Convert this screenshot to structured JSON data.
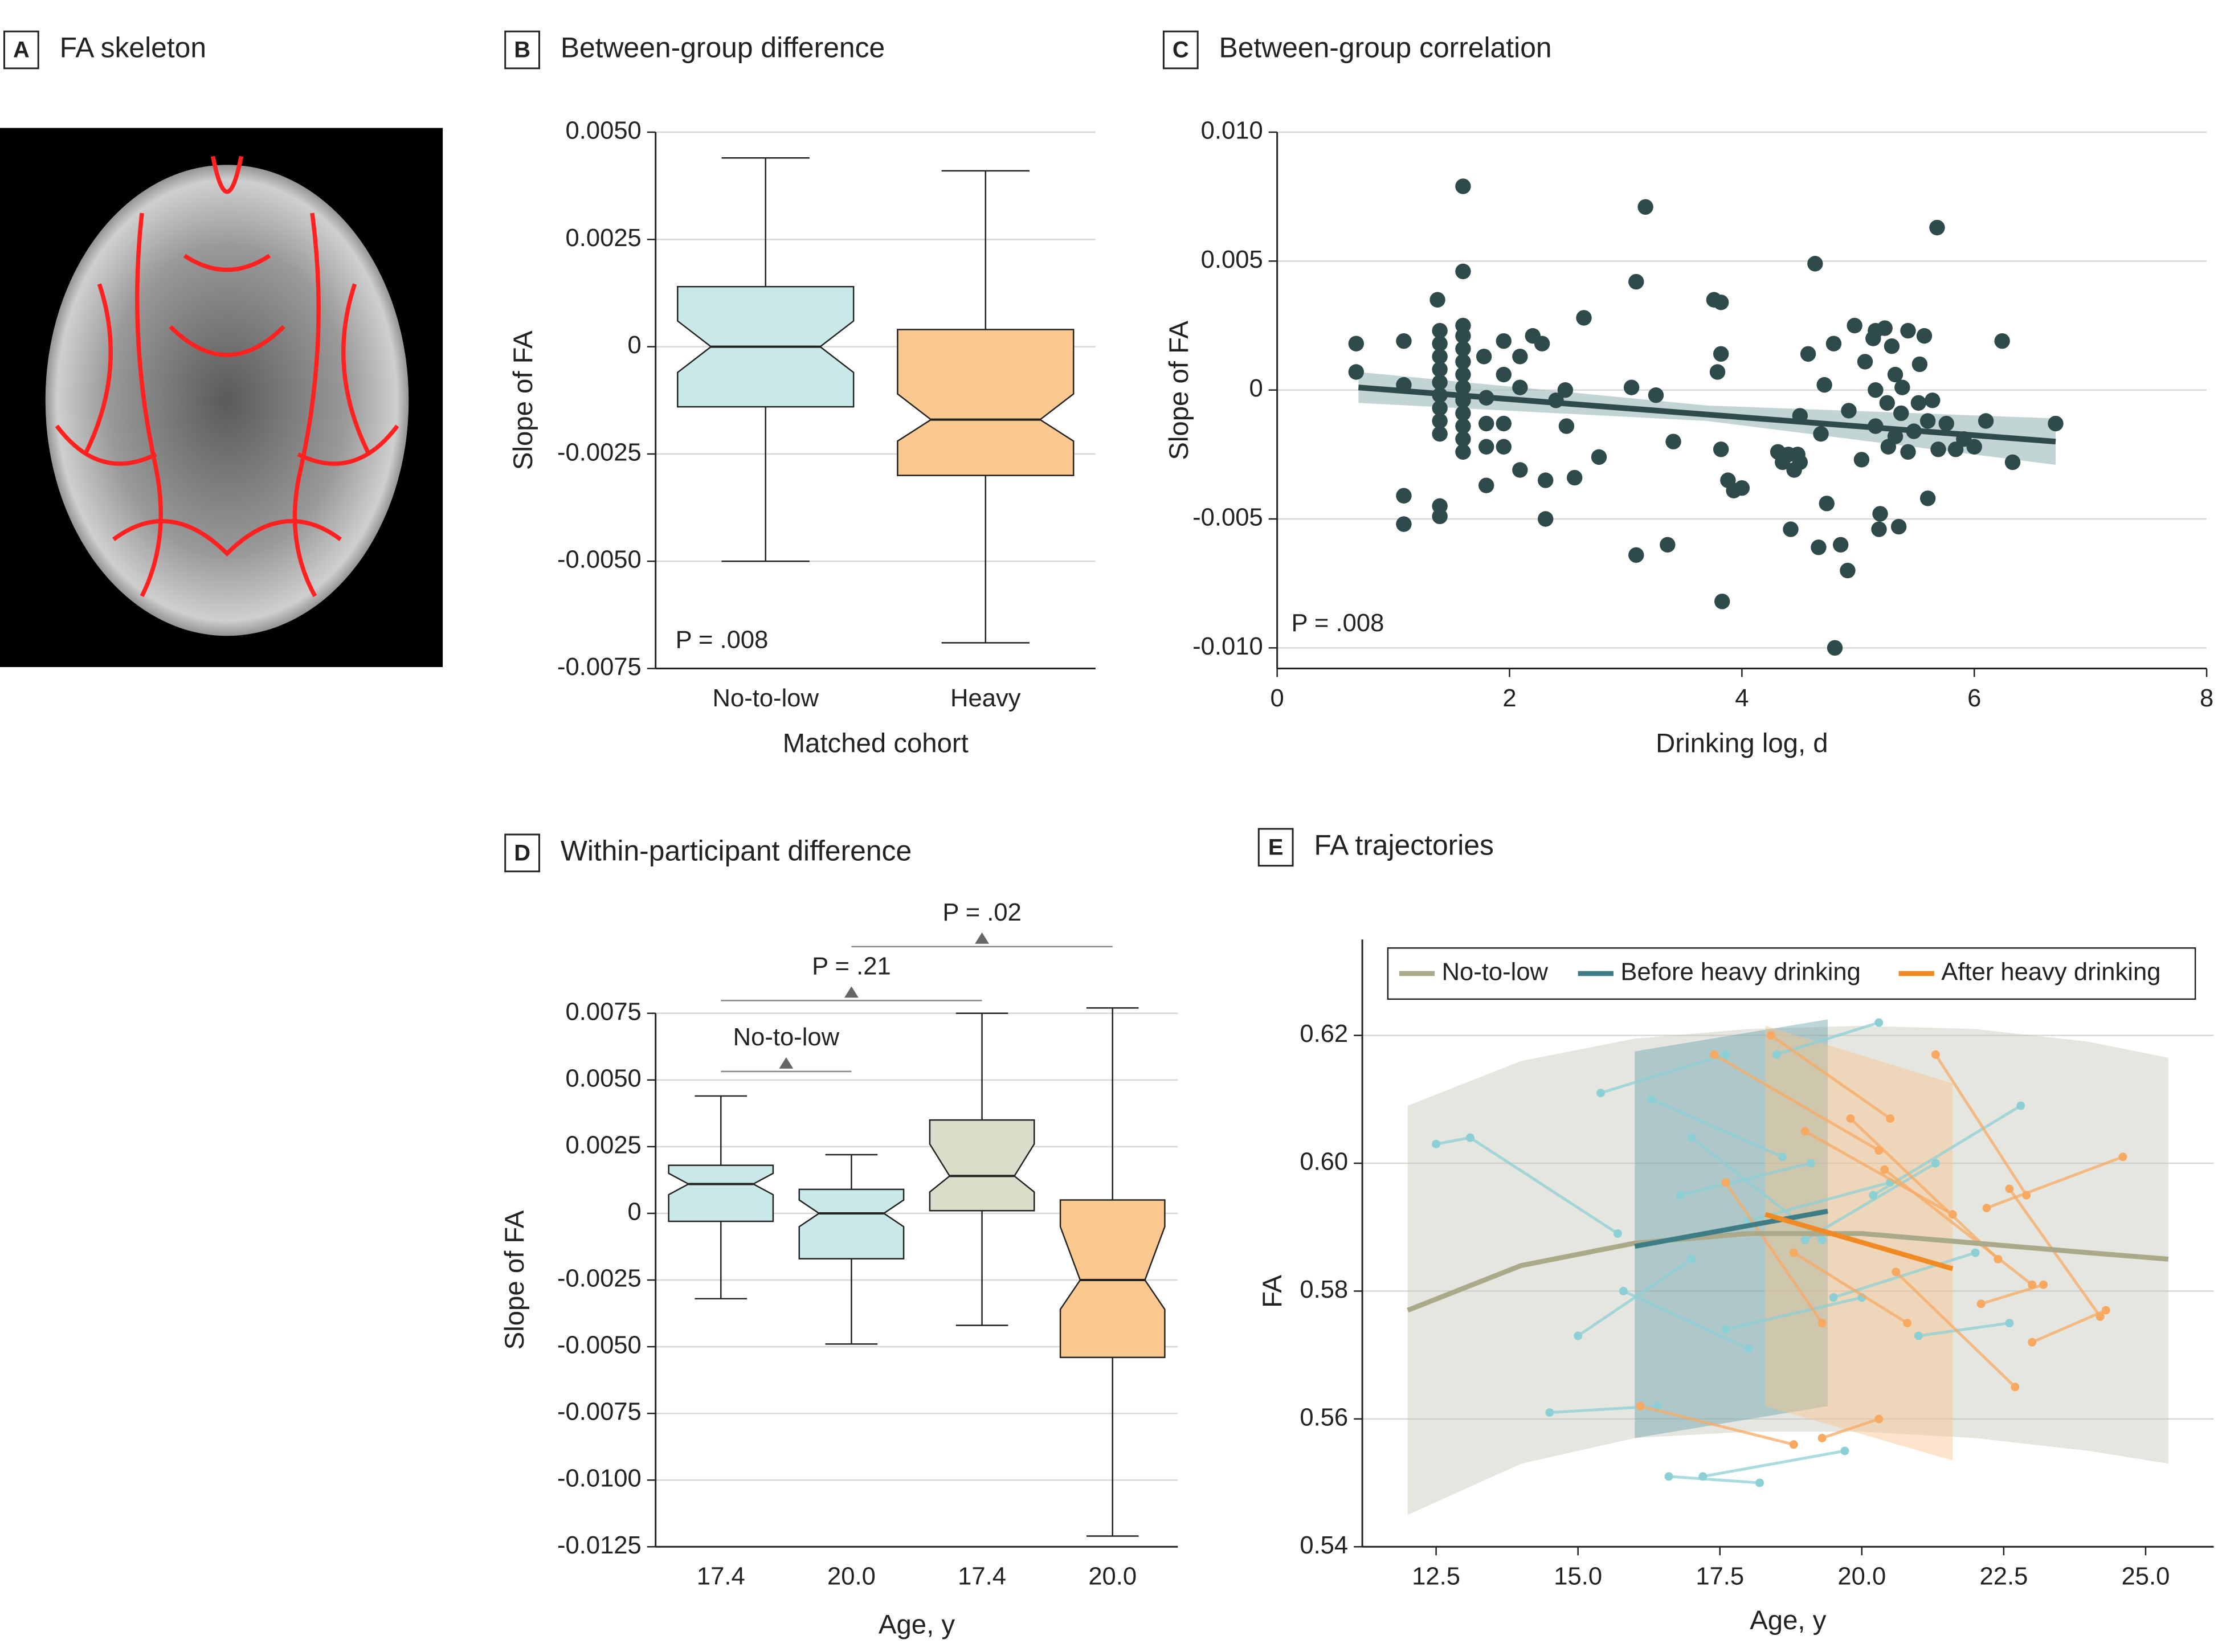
{
  "chart_data": [
    {
      "type": "image",
      "label": "A",
      "title": "FA skeleton"
    },
    {
      "type": "box",
      "label": "B",
      "title": "Between-group difference",
      "ylabel": "Slope of FA",
      "xlabel": "Matched cohort",
      "categories": [
        "No-to-low",
        "Heavy"
      ],
      "colors": [
        "#c9e8ea",
        "#fbc98f"
      ],
      "boxes": [
        {
          "whisker_low": -0.005,
          "q1": -0.0014,
          "notch_low": -0.0006,
          "median": 0,
          "notch_high": 0.0006,
          "q3": 0.0014,
          "whisker_high": 0.0044
        },
        {
          "whisker_low": -0.0069,
          "q1": -0.003,
          "notch_low": -0.0022,
          "median": -0.0017,
          "notch_high": -0.0011,
          "q3": 0.0004,
          "whisker_high": 0.0041
        }
      ],
      "ylim": [
        -0.0075,
        0.005
      ],
      "yticks": [
        {
          "value": 0.005,
          "label": "0.0050"
        },
        0.0025,
        0,
        -0.0025,
        {
          "value": -0.005,
          "label": "-0.0050"
        },
        -0.0075
      ],
      "grid": true,
      "annotation": "P = .008"
    },
    {
      "type": "scatter",
      "label": "C",
      "title": "Between-group correlation",
      "ylabel": "Slope of FA",
      "xlabel": "Drinking log, d",
      "color": "#2e4a4a",
      "x": [
        0.68,
        0.68,
        1.09,
        1.09,
        1.09,
        1.09,
        1.38,
        1.4,
        1.4,
        1.4,
        1.4,
        1.4,
        1.4,
        1.4,
        1.4,
        1.4,
        1.4,
        1.4,
        1.6,
        1.6,
        1.6,
        1.6,
        1.6,
        1.6,
        1.6,
        1.6,
        1.6,
        1.6,
        1.6,
        1.6,
        1.6,
        1.78,
        1.8,
        1.8,
        1.8,
        1.8,
        1.95,
        1.95,
        1.95,
        1.95,
        2.09,
        2.09,
        2.09,
        2.2,
        2.28,
        2.31,
        2.31,
        2.4,
        2.48,
        2.49,
        2.56,
        2.64,
        2.77,
        3.05,
        3.09,
        3.09,
        3.17,
        3.26,
        3.36,
        3.41,
        3.76,
        3.82,
        3.82,
        3.79,
        3.82,
        3.83,
        3.88,
        3.93,
        4.0,
        4.31,
        4.35,
        4.4,
        4.42,
        4.45,
        4.48,
        4.5,
        4.5,
        4.57,
        4.63,
        4.66,
        4.68,
        4.73,
        4.71,
        4.79,
        4.8,
        4.85,
        4.91,
        4.92,
        4.97,
        5.03,
        5.06,
        5.13,
        5.15,
        5.15,
        5.15,
        5.18,
        5.19,
        5.23,
        5.25,
        5.26,
        5.29,
        5.32,
        5.32,
        5.35,
        5.37,
        5.38,
        5.43,
        5.43,
        5.48,
        5.52,
        5.53,
        5.57,
        5.6,
        5.6,
        5.64,
        5.68,
        5.69,
        5.76,
        5.84,
        5.91,
        6.0,
        6.1,
        6.24,
        6.33,
        6.7
      ],
      "y": [
        0.0018,
        0.0007,
        0.0019,
        0.0002,
        -0.0041,
        -0.0052,
        0.0035,
        0.0023,
        0.0018,
        0.0013,
        0.0008,
        0.0003,
        -0.0002,
        -0.0007,
        -0.0012,
        -0.0017,
        -0.0045,
        -0.0049,
        0.0079,
        0.0046,
        0.0025,
        0.0021,
        0.0016,
        0.0011,
        0.0006,
        0.0001,
        -0.0004,
        -0.0009,
        -0.0014,
        -0.0019,
        -0.0024,
        0.0013,
        -0.0003,
        -0.0013,
        -0.0022,
        -0.0037,
        0.0006,
        -0.0013,
        -0.0022,
        0.0019,
        0.0013,
        0.0001,
        -0.0031,
        0.0021,
        0.0018,
        -0.0035,
        -0.005,
        -0.0004,
        0,
        -0.0014,
        -0.0034,
        0.0028,
        -0.0026,
        0.0001,
        0.0042,
        -0.0064,
        0.0071,
        -0.0002,
        -0.006,
        -0.002,
        0.0035,
        0.0034,
        0.0014,
        0.0007,
        -0.0023,
        -0.0082,
        -0.0035,
        -0.0039,
        -0.0038,
        -0.0024,
        -0.0028,
        -0.0025,
        -0.0054,
        -0.0031,
        -0.0025,
        -0.001,
        -0.0028,
        0.0014,
        0.0049,
        -0.0061,
        -0.0017,
        -0.0044,
        0.0002,
        0.0018,
        -0.01,
        -0.006,
        -0.007,
        -0.0008,
        0.0025,
        -0.0027,
        0.0011,
        0.002,
        0,
        -0.0014,
        0.0023,
        -0.0054,
        -0.0048,
        0.0024,
        -0.0005,
        -0.0022,
        0.0017,
        0.0006,
        -0.0018,
        -0.0053,
        -0.0009,
        0.0001,
        0.0023,
        -0.0024,
        -0.0016,
        -0.0005,
        0.001,
        0.0021,
        -0.0042,
        -0.0012,
        -0.0004,
        0.0063,
        -0.0023,
        -0.0013,
        -0.0023,
        -0.0019,
        -0.0022,
        -0.0012,
        0.0019,
        -0.0028,
        -0.0013
      ],
      "fit": {
        "x": [
          0.7,
          6.7
        ],
        "y": [
          0.0001,
          -0.002
        ],
        "color": "#2e4a4a"
      },
      "band": {
        "x": [
          0.7,
          3.7,
          6.7
        ],
        "lower": [
          -0.0005,
          -0.0012,
          -0.0029
        ],
        "upper": [
          0.0007,
          -0.0006,
          -0.0011
        ],
        "color": "#a8c2c0"
      },
      "xlim": [
        0,
        8
      ],
      "xticks": [
        0,
        2,
        4,
        6,
        8
      ],
      "ylim": [
        -0.0108,
        0.01
      ],
      "yticks": [
        {
          "value": 0.01,
          "label": "0.010"
        },
        0.005,
        0,
        -0.005,
        {
          "value": -0.01,
          "label": "-0.010"
        }
      ],
      "grid": true,
      "annotation": "P = .008"
    },
    {
      "type": "box",
      "label": "D",
      "title": "Within-participant difference",
      "ylabel": "Slope of FA",
      "xlabel": "Age, y",
      "categories": [
        "17.4",
        "20.0",
        "17.4",
        "20.0"
      ],
      "colors": [
        "#c9e8ea",
        "#c9e8ea",
        "#dcdccb",
        "#fbc98f"
      ],
      "boxes": [
        {
          "whisker_low": -0.0032,
          "q1": -0.0003,
          "notch_low": 0.0007,
          "median": 0.0011,
          "notch_high": 0.0015,
          "q3": 0.0018,
          "whisker_high": 0.0044
        },
        {
          "whisker_low": -0.0049,
          "q1": -0.0017,
          "notch_low": -0.0005,
          "median": 0,
          "notch_high": 0.0005,
          "q3": 0.0009,
          "whisker_high": 0.0022
        },
        {
          "whisker_low": -0.0042,
          "q1": 0.0001,
          "notch_low": 0.0008,
          "median": 0.0014,
          "notch_high": 0.0026,
          "q3": 0.0035,
          "whisker_high": 0.0075
        },
        {
          "whisker_low": -0.0121,
          "q1": -0.0054,
          "notch_low": -0.0036,
          "median": -0.0025,
          "notch_high": -0.0005,
          "q3": 0.0005,
          "whisker_high": 0.0077
        }
      ],
      "ylim": [
        -0.0125,
        0.0075
      ],
      "yticks": [
        0.0075,
        {
          "value": 0.005,
          "label": "0.0050"
        },
        0.0025,
        0,
        -0.0025,
        {
          "value": -0.005,
          "label": "-0.0050"
        },
        -0.0075,
        {
          "value": -0.01,
          "label": "-0.0100"
        },
        -0.0125
      ],
      "grid": true,
      "annotations": [
        "No-to-low",
        "P = .21",
        "P = .02"
      ]
    },
    {
      "type": "line",
      "label": "E",
      "title": "FA trajectories",
      "ylabel": "FA",
      "xlabel": "Age, y",
      "series": [
        {
          "name": "No-to-low",
          "color": "#aaa98a",
          "band_color": "#c8c8bc",
          "x": [
            12,
            14,
            16,
            18,
            20,
            22,
            24,
            25.4
          ],
          "y": [
            0.577,
            0.584,
            0.5875,
            0.589,
            0.589,
            0.5875,
            0.586,
            0.585
          ],
          "lower": [
            0.545,
            0.553,
            0.557,
            0.558,
            0.558,
            0.557,
            0.555,
            0.553
          ],
          "upper": [
            0.609,
            0.616,
            0.6195,
            0.621,
            0.6215,
            0.621,
            0.619,
            0.6165
          ]
        },
        {
          "name": "Before heavy drinking",
          "color": "#3f7d86",
          "band_color": "#6aa3ad",
          "x": [
            16,
            19.4
          ],
          "y": [
            0.587,
            0.5925
          ],
          "lower": [
            0.557,
            0.562
          ],
          "upper": [
            0.6175,
            0.6225
          ]
        },
        {
          "name": "After heavy drinking",
          "color": "#f08a24",
          "band_color": "#f9c48f",
          "x": [
            18.3,
            21.6
          ],
          "y": [
            0.592,
            0.5835
          ],
          "lower": [
            0.562,
            0.5535
          ],
          "upper": [
            0.6215,
            0.6125
          ]
        }
      ],
      "trajectories": [
        {
          "color": "#8ccfd4",
          "x": [
            12.5,
            13.1
          ],
          "y": [
            0.603,
            0.604
          ]
        },
        {
          "color": "#8ccfd4",
          "x": [
            13.1,
            15.7
          ],
          "y": [
            0.604,
            0.589
          ]
        },
        {
          "color": "#8ccfd4",
          "x": [
            14.5,
            16.4
          ],
          "y": [
            0.561,
            0.562
          ]
        },
        {
          "color": "#8ccfd4",
          "x": [
            15.4,
            17.6
          ],
          "y": [
            0.611,
            0.617
          ]
        },
        {
          "color": "#8ccfd4",
          "x": [
            15.0,
            17.0
          ],
          "y": [
            0.573,
            0.585
          ]
        },
        {
          "color": "#8ccfd4",
          "x": [
            16.3,
            18.6
          ],
          "y": [
            0.61,
            0.601
          ]
        },
        {
          "color": "#8ccfd4",
          "x": [
            16.8,
            19.1
          ],
          "y": [
            0.595,
            0.6
          ]
        },
        {
          "color": "#8ccfd4",
          "x": [
            17.2,
            19.7
          ],
          "y": [
            0.551,
            0.555
          ]
        },
        {
          "color": "#8ccfd4",
          "x": [
            16.6,
            18.2
          ],
          "y": [
            0.551,
            0.55
          ]
        },
        {
          "color": "#8ccfd4",
          "x": [
            17.6,
            20.0
          ],
          "y": [
            0.574,
            0.579
          ]
        },
        {
          "color": "#8ccfd4",
          "x": [
            18.0,
            20.5
          ],
          "y": [
            0.591,
            0.597
          ]
        },
        {
          "color": "#8ccfd4",
          "x": [
            18.5,
            20.3
          ],
          "y": [
            0.617,
            0.622
          ]
        },
        {
          "color": "#8ccfd4",
          "x": [
            19.0,
            21.3
          ],
          "y": [
            0.588,
            0.6
          ]
        },
        {
          "color": "#8ccfd4",
          "x": [
            19.5,
            22.0
          ],
          "y": [
            0.579,
            0.586
          ]
        },
        {
          "color": "#8ccfd4",
          "x": [
            20.2,
            22.8
          ],
          "y": [
            0.595,
            0.609
          ]
        },
        {
          "color": "#8ccfd4",
          "x": [
            15.8,
            18.0
          ],
          "y": [
            0.58,
            0.571
          ]
        },
        {
          "color": "#8ccfd4",
          "x": [
            17.0,
            19.3
          ],
          "y": [
            0.604,
            0.588
          ]
        },
        {
          "color": "#8ccfd4",
          "x": [
            21.0,
            22.6
          ],
          "y": [
            0.573,
            0.575
          ]
        },
        {
          "color": "#f7a961",
          "x": [
            16.1,
            18.8
          ],
          "y": [
            0.562,
            0.556
          ]
        },
        {
          "color": "#f7a961",
          "x": [
            17.4,
            20.3
          ],
          "y": [
            0.617,
            0.602
          ]
        },
        {
          "color": "#f7a961",
          "x": [
            18.4,
            20.5
          ],
          "y": [
            0.62,
            0.607
          ]
        },
        {
          "color": "#f7a961",
          "x": [
            19.0,
            21.6
          ],
          "y": [
            0.605,
            0.592
          ]
        },
        {
          "color": "#f7a961",
          "x": [
            19.8,
            22.4
          ],
          "y": [
            0.607,
            0.585
          ]
        },
        {
          "color": "#f7a961",
          "x": [
            20.4,
            23.0
          ],
          "y": [
            0.599,
            0.581
          ]
        },
        {
          "color": "#f7a961",
          "x": [
            21.3,
            22.9
          ],
          "y": [
            0.617,
            0.595
          ]
        },
        {
          "color": "#f7a961",
          "x": [
            22.2,
            24.6
          ],
          "y": [
            0.593,
            0.601
          ]
        },
        {
          "color": "#f7a961",
          "x": [
            23.0,
            24.3
          ],
          "y": [
            0.572,
            0.577
          ]
        },
        {
          "color": "#f7a961",
          "x": [
            22.1,
            23.2
          ],
          "y": [
            0.578,
            0.581
          ]
        },
        {
          "color": "#f7a961",
          "x": [
            19.3,
            20.3
          ],
          "y": [
            0.557,
            0.56
          ]
        },
        {
          "color": "#f7a961",
          "x": [
            17.6,
            19.3
          ],
          "y": [
            0.597,
            0.575
          ]
        },
        {
          "color": "#f7a961",
          "x": [
            18.8,
            20.8
          ],
          "y": [
            0.586,
            0.575
          ]
        },
        {
          "color": "#f7a961",
          "x": [
            20.6,
            22.7
          ],
          "y": [
            0.583,
            0.565
          ]
        },
        {
          "color": "#f7a961",
          "x": [
            22.6,
            24.2
          ],
          "y": [
            0.596,
            0.576
          ]
        }
      ],
      "xlim": [
        11.2,
        26.2
      ],
      "xticks": [
        12.5,
        {
          "value": 15,
          "label": "15.0"
        },
        17.5,
        {
          "value": 20,
          "label": "20.0"
        },
        22.5,
        {
          "value": 25,
          "label": "25.0"
        }
      ],
      "ylim": [
        0.54,
        0.635
      ],
      "yticks": [
        0.54,
        0.56,
        0.58,
        {
          "value": 0.6,
          "label": "0.60"
        },
        0.62
      ],
      "grid": true
    }
  ]
}
